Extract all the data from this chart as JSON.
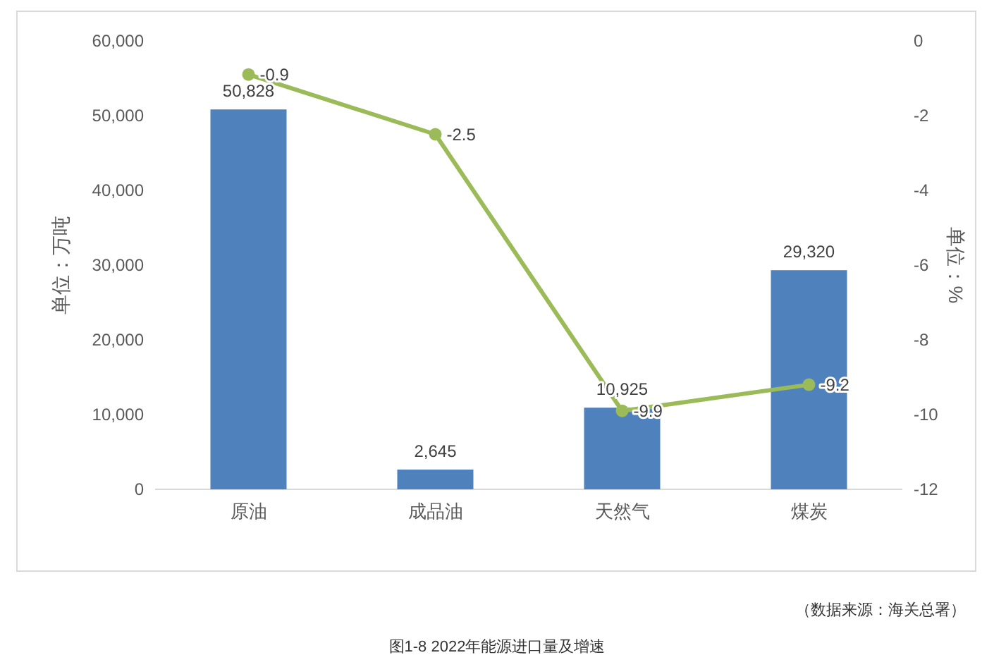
{
  "chart_data": {
    "type": "bar",
    "title": "图1-8  2022年能源进口量及增速",
    "ylabel": "单位：万吨",
    "y2label": "单位：%",
    "annotations": [
      "（数据来源：海关总署）"
    ],
    "categories": [
      "原油",
      "成品油",
      "天然气",
      "煤炭"
    ],
    "series": [
      {
        "color": "#4f81bd",
        "values": [
          50828,
          2645,
          10925,
          29320
        ],
        "value_labels": [
          "50,828",
          "2,645",
          "10,925",
          "29,320"
        ]
      },
      {
        "type": "line",
        "axis": "y2",
        "color": "#9bbb59",
        "marker": "circle",
        "values": [
          -0.9,
          -2.5,
          -9.9,
          -9.2
        ],
        "value_labels": [
          "-0.9",
          "-2.5",
          "-9.9",
          "-9.2"
        ]
      }
    ],
    "ylim": [
      0,
      60000
    ],
    "yticks": [
      0,
      {
        "value": 10000,
        "label": "10,000"
      },
      {
        "value": 20000,
        "label": "20,000"
      },
      {
        "value": 30000,
        "label": "30,000"
      },
      {
        "value": 40000,
        "label": "40,000"
      },
      {
        "value": 50000,
        "label": "50,000"
      },
      {
        "value": 60000,
        "label": "60,000"
      }
    ],
    "y2lim": [
      -12,
      0
    ],
    "y2ticks": [
      0,
      -2,
      -4,
      -6,
      -8,
      -10,
      -12
    ],
    "grid": false
  }
}
